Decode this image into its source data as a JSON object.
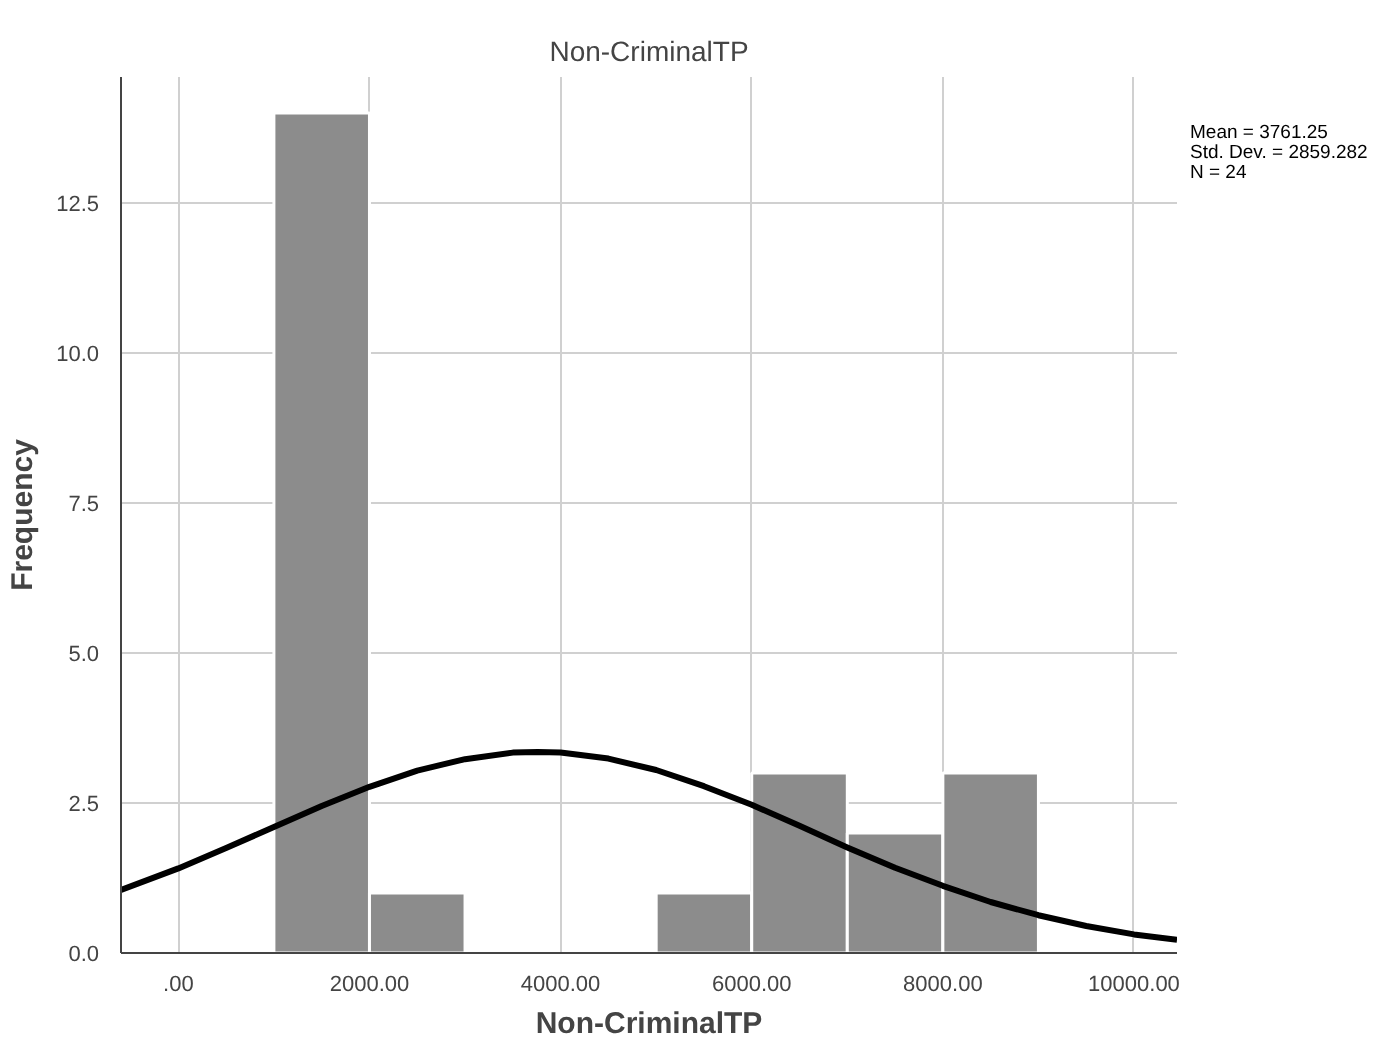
{
  "chart_data": {
    "type": "histogram",
    "title": "Non-CriminalTP",
    "xlabel": "Non-CriminalTP",
    "ylabel": "Frequency",
    "bins": [
      1000,
      2000,
      3000,
      4000,
      5000,
      6000,
      7000,
      8000,
      9000
    ],
    "values": [
      14,
      1,
      0,
      0,
      1,
      3,
      2,
      3
    ],
    "color": "#8c8c8c",
    "series": [
      {
        "type": "line",
        "color": "#000000",
        "x": [
          -600,
          0,
          500,
          1000,
          1500,
          2000,
          2500,
          3000,
          3500,
          3761.25,
          4000,
          4500,
          5000,
          5500,
          6000,
          6500,
          7000,
          7500,
          8000,
          8500,
          9000,
          9500,
          10000,
          10450
        ],
        "values": [
          1.05,
          1.41,
          1.75,
          2.1,
          2.45,
          2.77,
          3.04,
          3.23,
          3.34,
          3.35,
          3.34,
          3.24,
          3.05,
          2.78,
          2.47,
          2.12,
          1.76,
          1.42,
          1.12,
          0.85,
          0.63,
          0.45,
          0.31,
          0.22
        ]
      }
    ],
    "xlim": [
      -600,
      10450
    ],
    "ylim": [
      0,
      14.6
    ],
    "xticks": [
      {
        "value": 0,
        "label": ".00"
      },
      {
        "value": 2000,
        "label": "2000.00"
      },
      {
        "value": 4000,
        "label": "4000.00"
      },
      {
        "value": 6000,
        "label": "6000.00"
      },
      {
        "value": 8000,
        "label": "8000.00"
      },
      {
        "value": 10000,
        "label": "10000.00"
      }
    ],
    "yticks": [
      {
        "value": 0,
        "label": "0.0"
      },
      {
        "value": 2.5,
        "label": "2.5"
      },
      {
        "value": 5,
        "label": "5.0"
      },
      {
        "value": 7.5,
        "label": "7.5"
      },
      {
        "value": 10,
        "label": "10.0"
      },
      {
        "value": 12.5,
        "label": "12.5"
      }
    ],
    "grid": true,
    "annotations": [
      "Mean = 3761.25",
      "Std. Dev. = 2859.282",
      "N = 24"
    ]
  }
}
